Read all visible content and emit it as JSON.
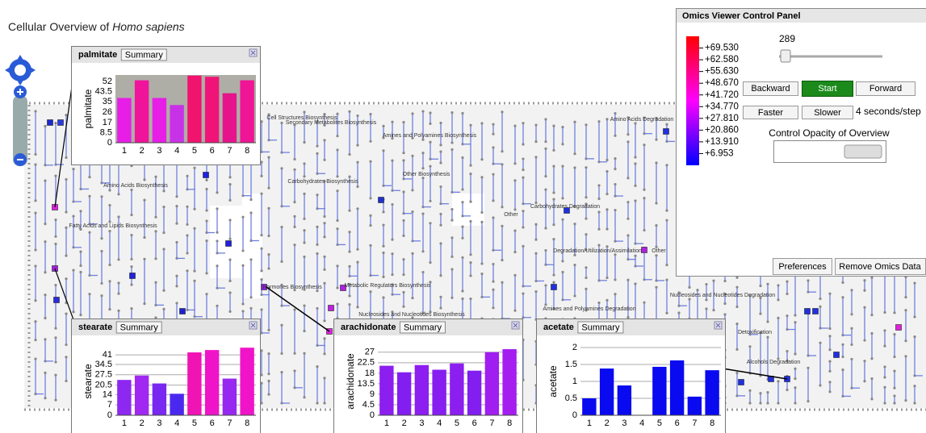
{
  "title": {
    "prefix": "Cellular Overview of ",
    "organism": "Homo sapiens"
  },
  "map_labels": [
    "Cell Structures Biosynthesis",
    "Secondary Metabolites Biosynthesis",
    "Amines and Polyamines Biosynthesis",
    "Other Biosynthesis",
    "Amino Acids Biosynthesis",
    "Carbohydrates Biosynthesis",
    "Fatty Acids and Lipids Biosynthesis",
    "Hormones Biosynthesis",
    "Metabolic Regulators Biosynthesis",
    "Nucleosides and Nucleotides Biosynthesis",
    "Amino Acids Degradation",
    "Other",
    "Carbohydrates Degradation",
    "Degradation/Utilization/Assimilation",
    "Other",
    "Carbohydrates Degradation",
    "Nucleosides and Nucleotides Degradation",
    "Amines and Polyamines Degradation",
    "Detoxification",
    "Alcohols Degradation"
  ],
  "control_panel": {
    "title": "Omics Viewer Control Panel",
    "scale": {
      "colors": [
        "#ff0000",
        "#ff00ff",
        "#0000ff"
      ],
      "lim": [
        0,
        76.5
      ],
      "ticks": [
        {
          "value": 69.53,
          "label": "+69.530"
        },
        {
          "value": 62.58,
          "label": "+62.580"
        },
        {
          "value": 55.63,
          "label": "+55.630"
        },
        {
          "value": 48.67,
          "label": "+48.670"
        },
        {
          "value": 41.72,
          "label": "+41.720"
        },
        {
          "value": 34.77,
          "label": "+34.770"
        },
        {
          "value": 27.81,
          "label": "+27.810"
        },
        {
          "value": 20.86,
          "label": "+20.860"
        },
        {
          "value": 13.91,
          "label": "+13.910"
        },
        {
          "value": 6.953,
          "label": "+6.953"
        }
      ]
    },
    "step": 289,
    "backward": "Backward",
    "start": "Start",
    "forward": "Forward",
    "faster": "Faster",
    "slower": "Slower",
    "speed": "4 seconds/step",
    "opacity_label": "Control Opacity of Overview",
    "preferences": "Preferences",
    "remove": "Remove Omics Data"
  },
  "chart_data": [
    {
      "type": "bar",
      "title": "palmitate",
      "button": "Summary",
      "ylabel": "palmitate",
      "categories": [
        "1",
        "2",
        "3",
        "4",
        "5",
        "6",
        "7",
        "8"
      ],
      "values": [
        38,
        53,
        38,
        32,
        57,
        56,
        42,
        53
      ],
      "colors": [
        "#e61ee6",
        "#f0149b",
        "#e61ee6",
        "#c832e6",
        "#f0146e",
        "#f01478",
        "#e6148c",
        "#f01496"
      ],
      "ylim": [
        0,
        57.5
      ],
      "yticks": [
        0,
        8.5,
        17,
        26,
        35,
        43.5,
        52
      ],
      "grid": false,
      "background": "#aeaea6"
    },
    {
      "type": "bar",
      "title": "stearate",
      "button": "Summary",
      "ylabel": "stearate",
      "categories": [
        "1",
        "2",
        "3",
        "4",
        "5",
        "6",
        "7",
        "8"
      ],
      "values": [
        24,
        27,
        21.6,
        14.6,
        42.7,
        44.3,
        24.9,
        45.9
      ],
      "colors": [
        "#8c28f0",
        "#a028f0",
        "#7828f0",
        "#4b28f0",
        "#f014b4",
        "#f014c8",
        "#9628f0",
        "#f014c8"
      ],
      "ylim": [
        0,
        46
      ],
      "yticks": [
        0,
        7,
        14,
        20.5,
        27.5,
        34.5,
        41
      ],
      "grid": true,
      "background": "#ffffff"
    },
    {
      "type": "bar",
      "title": "arachidonate",
      "button": "Summary",
      "ylabel": "arachidonate",
      "categories": [
        "1",
        "2",
        "3",
        "4",
        "5",
        "6",
        "7",
        "8"
      ],
      "values": [
        21.2,
        18.4,
        21.5,
        19.5,
        22.2,
        19.1,
        27,
        28.3
      ],
      "colors": [
        "#8c1ef0",
        "#821ef0",
        "#8c1ef0",
        "#871ef0",
        "#8c1ef0",
        "#821ef0",
        "#a01ef0",
        "#a51ef0"
      ],
      "ylim": [
        0,
        29
      ],
      "yticks": [
        0,
        4.5,
        9,
        13.5,
        18,
        22.5,
        27
      ],
      "grid": true,
      "background": "#ffffff"
    },
    {
      "type": "bar",
      "title": "acetate",
      "button": "Summary",
      "ylabel": "acetate",
      "categories": [
        "1",
        "2",
        "3",
        "4",
        "5",
        "6",
        "7",
        "8"
      ],
      "values": [
        0.5,
        1.38,
        0.88,
        0,
        1.43,
        1.62,
        0.55,
        1.33
      ],
      "colors": [
        "#0a0af0",
        "#0a0af0",
        "#0a0af0",
        "#0a0af0",
        "#0a0af0",
        "#0a0af0",
        "#0a0af0",
        "#0a0af0"
      ],
      "ylim": [
        0,
        2
      ],
      "yticks": [
        0,
        0.5,
        1,
        1.5,
        2
      ],
      "grid": true,
      "background": "#ffffff"
    }
  ]
}
